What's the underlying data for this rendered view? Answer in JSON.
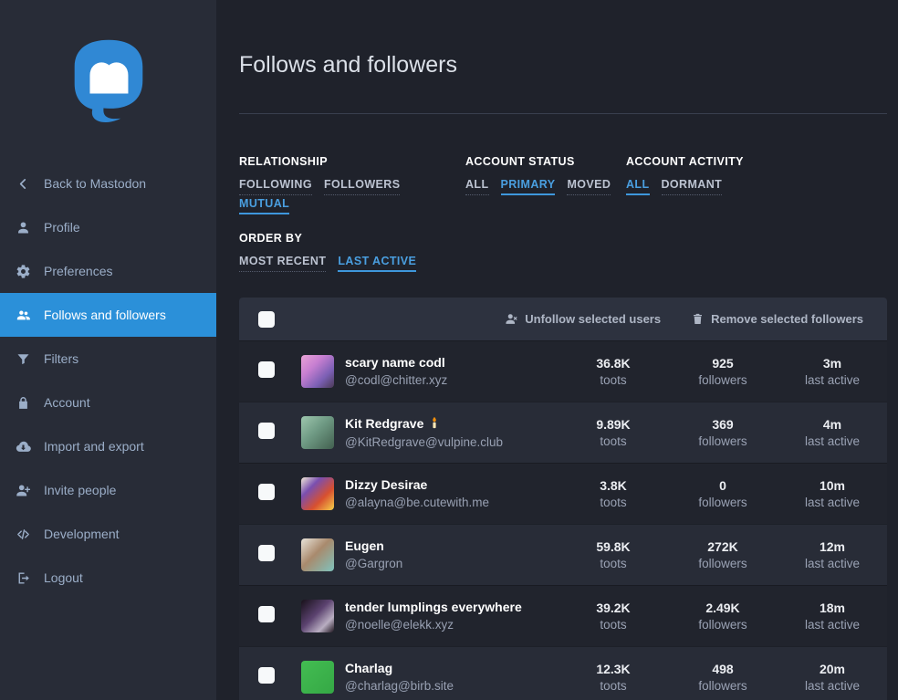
{
  "colors": {
    "accent": "#2b90d9",
    "accent_text": "#4a9fe0",
    "sidebar_bg": "#282c37",
    "content_bg": "#1f222b",
    "logo_blue": "#3088d4"
  },
  "sidebar": {
    "logo": "mastodon-logo",
    "back_item": {
      "icon": "chevron-left-icon",
      "label": "Back to Mastodon"
    },
    "items": [
      {
        "icon": "user-icon",
        "label": "Profile",
        "active": false
      },
      {
        "icon": "gear-icon",
        "label": "Preferences",
        "active": false
      },
      {
        "icon": "users-icon",
        "label": "Follows and followers",
        "active": true
      },
      {
        "icon": "filter-icon",
        "label": "Filters",
        "active": false
      },
      {
        "icon": "lock-icon",
        "label": "Account",
        "active": false
      },
      {
        "icon": "cloud-download-icon",
        "label": "Import and export",
        "active": false
      },
      {
        "icon": "user-plus-icon",
        "label": "Invite people",
        "active": false
      },
      {
        "icon": "code-icon",
        "label": "Development",
        "active": false
      },
      {
        "icon": "logout-icon",
        "label": "Logout",
        "active": false
      }
    ]
  },
  "main": {
    "title": "Follows and followers",
    "filter_groups": [
      {
        "heading": "RELATIONSHIP",
        "options": [
          {
            "label": "FOLLOWING",
            "active": false
          },
          {
            "label": "FOLLOWERS",
            "active": false
          },
          {
            "label": "MUTUAL",
            "active": true
          }
        ]
      },
      {
        "heading": "ACCOUNT STATUS",
        "options": [
          {
            "label": "ALL",
            "active": false
          },
          {
            "label": "PRIMARY",
            "active": true
          },
          {
            "label": "MOVED",
            "active": false
          }
        ]
      },
      {
        "heading": "ACCOUNT ACTIVITY",
        "options": [
          {
            "label": "ALL",
            "active": true
          },
          {
            "label": "DORMANT",
            "active": false
          }
        ]
      },
      {
        "heading": "ORDER BY",
        "options": [
          {
            "label": "MOST RECENT",
            "active": false
          },
          {
            "label": "LAST ACTIVE",
            "active": true
          }
        ]
      }
    ],
    "table": {
      "select_all_checked": false,
      "actions": [
        {
          "icon": "user-x-icon",
          "label": "Unfollow selected users"
        },
        {
          "icon": "trash-icon",
          "label": "Remove selected followers"
        }
      ],
      "labels": {
        "toots": "toots",
        "followers": "followers",
        "last_active": "last active"
      },
      "rows": [
        {
          "name": "scary name codl",
          "emoji": "",
          "handle": "@codl@chitter.xyz",
          "toots": "36.8K",
          "followers": "925",
          "last_active": "3m",
          "checked": false,
          "avatar": "linear-gradient(135deg,#e9a3d6 0%,#c77fd1 35%,#7b5fb4 70%,#4a3a55 100%)"
        },
        {
          "name": "Kit Redgrave",
          "emoji": "candle",
          "handle": "@KitRedgrave@vulpine.club",
          "toots": "9.89K",
          "followers": "369",
          "last_active": "4m",
          "checked": false,
          "avatar": "linear-gradient(135deg,#9ec7ae 0%,#6f9a84 45%,#42604f 100%)"
        },
        {
          "name": "Dizzy Desirae",
          "emoji": "",
          "handle": "@alayna@be.cutewith.me",
          "toots": "3.8K",
          "followers": "0",
          "last_active": "10m",
          "checked": false,
          "avatar": "linear-gradient(135deg,#f2ead6 0%,#7a4fb0 30%,#d8502f 65%,#f5d04a 100%)"
        },
        {
          "name": "Eugen",
          "emoji": "",
          "handle": "@Gargron",
          "toots": "59.8K",
          "followers": "272K",
          "last_active": "12m",
          "checked": false,
          "avatar": "linear-gradient(135deg,#e9e4da 0%,#a98a6d 45%,#7fc3bd 100%)"
        },
        {
          "name": "tender lumplings everywhere",
          "emoji": "",
          "handle": "@noelle@elekk.xyz",
          "toots": "39.2K",
          "followers": "2.49K",
          "last_active": "18m",
          "checked": false,
          "avatar": "linear-gradient(135deg,#171019 0%,#5c4370 45%,#b9aec2 75%,#20161f 100%)"
        },
        {
          "name": "Charlag",
          "emoji": "",
          "handle": "@charlag@birb.site",
          "toots": "12.3K",
          "followers": "498",
          "last_active": "20m",
          "checked": false,
          "avatar": "linear-gradient(135deg,#43bd52 0%,#35a845 100%)"
        }
      ]
    }
  }
}
